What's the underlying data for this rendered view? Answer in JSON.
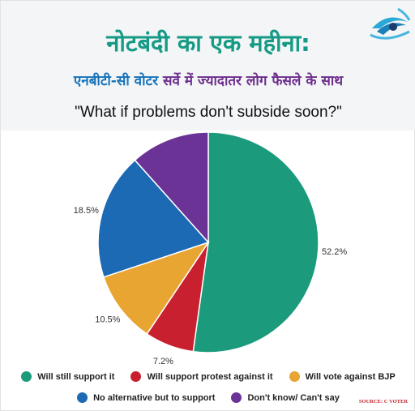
{
  "header": {
    "title": "नोटबंदी का एक महीना:",
    "subtitle_part1": "एनबीटी-सी वोटर",
    "subtitle_part2": "सर्वे में ज्यादातर लोग फैसले के साथ",
    "question": "\"What if problems don't subside soon?\""
  },
  "source": "SOURCE: C VOTER",
  "colors": {
    "title": "#159a85",
    "subtitle_blue": "#1672b9",
    "subtitle_purple": "#6d2d8d"
  },
  "logo_icon": "eye-logo-icon",
  "chart_data": {
    "type": "pie",
    "title": "\"What if problems don't subside soon?\"",
    "start_angle_deg": 0,
    "direction": "clockwise",
    "slices": [
      {
        "label": "Will still support it",
        "value": 52.2,
        "value_label": "52.2%",
        "color": "#1b9b7b"
      },
      {
        "label": "Will support protest against it",
        "value": 7.2,
        "value_label": "7.2%",
        "color": "#c8202e"
      },
      {
        "label": "Will vote against BJP",
        "value": 10.5,
        "value_label": "10.5%",
        "color": "#e8a532"
      },
      {
        "label": "No alternative but to support",
        "value": 18.5,
        "value_label": "18.5%",
        "color": "#1c69b4"
      },
      {
        "label": "Don't know/ Can't say",
        "value": 11.6,
        "value_label": "11.6%",
        "color": "#6c3396"
      }
    ],
    "legend_placement": "bottom"
  },
  "legend": {
    "row1": [
      {
        "label": "Will still support it",
        "color": "#1b9b7b"
      },
      {
        "label": "Will support protest against it",
        "color": "#c8202e"
      },
      {
        "label": "Will vote against BJP",
        "color": "#e8a532"
      }
    ],
    "row2": [
      {
        "label": "No alternative but to support",
        "color": "#1c69b4"
      },
      {
        "label": "Don't know/ Can't say",
        "color": "#6c3396"
      }
    ]
  }
}
